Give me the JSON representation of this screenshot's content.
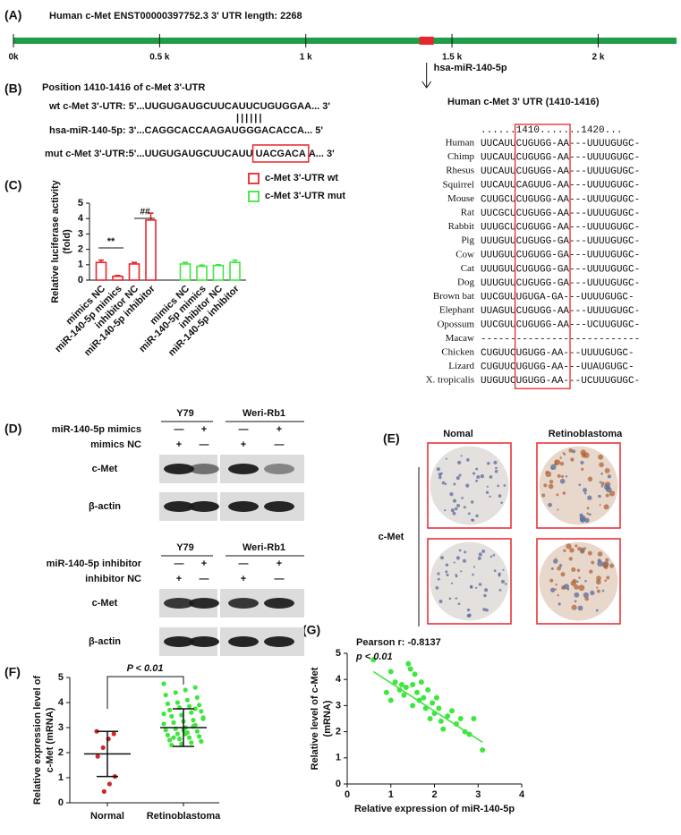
{
  "panel_labels": [
    "(A)",
    "(B)",
    "(C)",
    "(D)",
    "(E)",
    "(F)",
    "(G)"
  ],
  "utr": {
    "title": "Human c-Met  ENST00000397752.3   3' UTR length: 2268",
    "xlim": [
      0,
      2268
    ],
    "xticks": [
      {
        "value": 0,
        "label": "0k"
      },
      {
        "value": 500,
        "label": "0.5 k"
      },
      {
        "value": 1000,
        "label": "1 k"
      },
      {
        "value": 1500,
        "label": "1.5 k"
      },
      {
        "value": 2000,
        "label": "2 k"
      }
    ],
    "color": "#1f9e48",
    "site": [
      1410,
      1416
    ],
    "site_color": "#e8262d",
    "mirna": "hsa-miR-140-5p"
  },
  "binding": {
    "title": "Position 1410-1416 of c-Met  3'-UTR",
    "wt": "wt c-Met 3'-UTR: 5'...UUGUGAUGCUUCAUUCUGUGGAA... 3'",
    "pairs": "||||||",
    "mirna": "hsa-miR-140-5p: 3'...CAGGCACCAAGAUGGGACACCA... 5'",
    "mut": [
      "mut c-Met 3'-UTR:5'...UUGUGAUGCUUCAUU",
      "UACGACA",
      "A... 3'"
    ]
  },
  "alignment": {
    "title": "Human c-Met 3' UTR (1410-1416)",
    "ruler": "......1410.......1420...",
    "rows": [
      {
        "species": "Human",
        "sequence": "UUCAUUCUGUGG-AA---UUUUGUGC-",
        "species_color": "#2b34c8",
        "sequence_color": "#111111"
      },
      {
        "species": "Chimp",
        "sequence": "UUCAUUCUGUGG-AA---UUUUGUGC-",
        "species_color": "#2b34c8",
        "sequence_color": "#2b34c8"
      },
      {
        "species": "Rhesus",
        "sequence": "UUCAUUCUGUGG-AA---UUUUGUGC-",
        "species_color": "#2b34c8",
        "sequence_color": "#111111"
      },
      {
        "species": "Squirrel",
        "sequence": "UUCAUUCAGUUG-AA---UUUUGUGC-",
        "species_color": "#2a8a2a",
        "sequence_color": "#2b34c8"
      },
      {
        "species": "Mouse",
        "sequence": "CUUGCUCUGUGG-AA---UUUUGUGC-",
        "species_color": "#2a8a2a",
        "sequence_color": "#b0209a"
      },
      {
        "species": "Rat",
        "sequence": "UUCGCUCUGUGG-AA---UUUUGUGC-",
        "species_color": "#2a8a2a",
        "sequence_color": "#111111"
      },
      {
        "species": "Rabbit",
        "sequence": "UUUGCUCUGUGG-AA---UUUUGUGC-",
        "species_color": "#2a8a2a",
        "sequence_color": "#2b34c8"
      },
      {
        "species": "Pig",
        "sequence": "UUUGUUCUGUGG-GA---UUUUGUGC-",
        "species_color": "#2b34c8",
        "sequence_color": "#111111"
      },
      {
        "species": "Cow",
        "sequence": "UUUGUUCUGUGG-GA---UUUUGUGC-",
        "species_color": "#2b34c8",
        "sequence_color": "#2b34c8"
      },
      {
        "species": "Cat",
        "sequence": "UUUGUUCUGUGG-GA---UUUUGUGC-",
        "species_color": "#2b34c8",
        "sequence_color": "#b0209a"
      },
      {
        "species": "Dog",
        "sequence": "UUUGUUCUGUGG-GA---UUUUGUGC-",
        "species_color": "#2a8a2a",
        "sequence_color": "#111111"
      },
      {
        "species": "Brown bat",
        "sequence": "UUCGUUUGUGA-GA---UUUUGUGC-",
        "species_color": "#2b34c8",
        "sequence_color": "#2b34c8"
      },
      {
        "species": "Elephant",
        "sequence": "UUAGUUCUGUGG-AA---UUUUGUGC-",
        "species_color": "#2a8a2a",
        "sequence_color": "#111111"
      },
      {
        "species": "Opossum",
        "sequence": "UUCGUUCUGUGG-AA---UCUUGUGC-",
        "species_color": "#2b34c8",
        "sequence_color": "#2b34c8"
      },
      {
        "species": "Macaw",
        "sequence": "---------------------------",
        "species_color": "#2a8a2a",
        "sequence_color": "#b0209a"
      },
      {
        "species": "Chicken",
        "sequence": "CUGUUCUGUGG-AA---UUUUGUGC-",
        "species_color": "#2a8a2a",
        "sequence_color": "#111111"
      },
      {
        "species": "Lizard",
        "sequence": "CUGUUCUGUGG-AA---UUAUGUGC-",
        "species_color": "#2b34c8",
        "sequence_color": "#2b34c8"
      },
      {
        "species": "X. tropicalis",
        "sequence": "UUGUUCUGUGG-AA---UCUUUGUGC-",
        "species_color": "#2b34c8",
        "sequence_color": "#111111"
      }
    ]
  },
  "chart_data": [
    {
      "type": "bar",
      "ylabel": [
        "Relative luciferase activity",
        "(fold)"
      ],
      "categories": [
        "mimics NC",
        "miR-140-5p mimics",
        "inhibitor NC",
        "miR-140-5p inhibitor",
        "mimics NC",
        "miR-140-5p mimics",
        "inhibitor NC",
        "miR-140-5p inhibitor"
      ],
      "series": [
        {
          "name": "c-Met 3'-UTR wt",
          "color": "#e8262d",
          "values": [
            1.15,
            0.25,
            1.05,
            3.9,
            null,
            null,
            null,
            null
          ],
          "errors": [
            0.15,
            0.05,
            0.1,
            0.45,
            null,
            null,
            null,
            null
          ]
        },
        {
          "name": "c-Met 3'-UTR mut",
          "color": "#3ee63e",
          "values": [
            null,
            null,
            null,
            null,
            1.05,
            0.9,
            0.95,
            1.15
          ],
          "errors": [
            null,
            null,
            null,
            null,
            0.1,
            0.08,
            0.05,
            0.15
          ]
        }
      ],
      "ylim": [
        0,
        5
      ],
      "yticks": [
        0,
        1,
        2,
        3,
        4,
        5
      ],
      "annotations": [
        "**",
        "##"
      ]
    },
    {
      "type": "strip",
      "ylabel": [
        "Relative expression level of",
        "c-Met (mRNA)"
      ],
      "categories": [
        "Normal",
        "Retinoblastoma"
      ],
      "series": [
        {
          "color": "#d62728",
          "values": [
            2.85,
            2.75,
            2.55,
            2.2,
            1.85,
            1.05,
            0.75,
            0.45
          ],
          "mean": 1.95,
          "sd": 0.9
        },
        {
          "color": "#3ee63e",
          "values": [
            4.75,
            4.6,
            4.5,
            4.4,
            4.3,
            4.2,
            4.1,
            4.0,
            3.95,
            3.9,
            3.85,
            3.8,
            3.7,
            3.65,
            3.6,
            3.5,
            3.45,
            3.4,
            3.3,
            3.25,
            3.2,
            3.15,
            3.1,
            3.0,
            2.95,
            2.9,
            2.85,
            2.8,
            2.75,
            2.7,
            2.65,
            2.6,
            2.55,
            2.5,
            2.45,
            2.4,
            2.35,
            2.3,
            3.35,
            3.05,
            2.9,
            2.6,
            3.55,
            3.75,
            2.75
          ],
          "mean": 3.0,
          "sd": 0.75
        }
      ],
      "ylim": [
        0,
        5
      ],
      "yticks": [
        0,
        1,
        2,
        3,
        4,
        5
      ],
      "annotation": "P < 0.01"
    },
    {
      "type": "scatter",
      "xlabel": "Relative expression of miR-140-5p",
      "ylabel": [
        "Relative level of c-Met",
        "(mRNA)"
      ],
      "color": "#3ee63e",
      "x": [
        0.6,
        0.9,
        1.0,
        1.1,
        1.2,
        1.25,
        1.3,
        1.4,
        1.45,
        1.5,
        1.5,
        1.55,
        1.6,
        1.65,
        1.7,
        1.75,
        1.8,
        1.85,
        1.9,
        1.95,
        2.0,
        2.05,
        2.1,
        2.15,
        2.2,
        2.3,
        2.4,
        2.5,
        2.6,
        2.7,
        2.8,
        2.9,
        3.1,
        1.35,
        1.0
      ],
      "y": [
        4.75,
        3.5,
        3.2,
        3.9,
        3.6,
        3.8,
        3.4,
        4.6,
        4.4,
        3.0,
        3.8,
        4.2,
        3.5,
        3.2,
        3.9,
        3.3,
        2.9,
        3.6,
        2.5,
        3.1,
        2.7,
        3.3,
        2.9,
        2.4,
        2.1,
        2.6,
        2.8,
        2.3,
        2.5,
        2.0,
        1.9,
        2.5,
        1.3,
        3.7,
        4.3
      ],
      "fit": {
        "x": [
          0.6,
          3.1
        ],
        "y": [
          4.3,
          1.6
        ]
      },
      "xlim": [
        0,
        4
      ],
      "xticks": [
        0,
        1,
        2,
        3,
        4
      ],
      "ylim": [
        0,
        5
      ],
      "yticks": [
        0,
        1,
        2,
        3,
        4,
        5
      ],
      "annotations": [
        "Pearson r: -0.8137",
        "p < 0.01"
      ]
    }
  ],
  "blots": [
    {
      "cells": [
        "Y79",
        "Weri-Rb1"
      ],
      "rows": [
        {
          "label": "miR-140-5p mimics",
          "signs": [
            "—",
            "+",
            "—",
            "+"
          ]
        },
        {
          "label": "mimics NC",
          "signs": [
            "+",
            "—",
            "+",
            "—"
          ]
        }
      ],
      "bands": [
        "c-Met",
        "β-actin"
      ]
    },
    {
      "cells": [
        "Y79",
        "Weri-Rb1"
      ],
      "rows": [
        {
          "label": "miR-140-5p inhibitor",
          "signs": [
            "—",
            "+",
            "—",
            "+"
          ]
        },
        {
          "label": "inhibitor NC",
          "signs": [
            "+",
            "—",
            "+",
            "—"
          ]
        }
      ],
      "bands": [
        "c-Met",
        "β-actin"
      ]
    }
  ],
  "ihc": {
    "columns": [
      "Nomal",
      "Retinoblastoma"
    ],
    "row": "c-Met"
  }
}
